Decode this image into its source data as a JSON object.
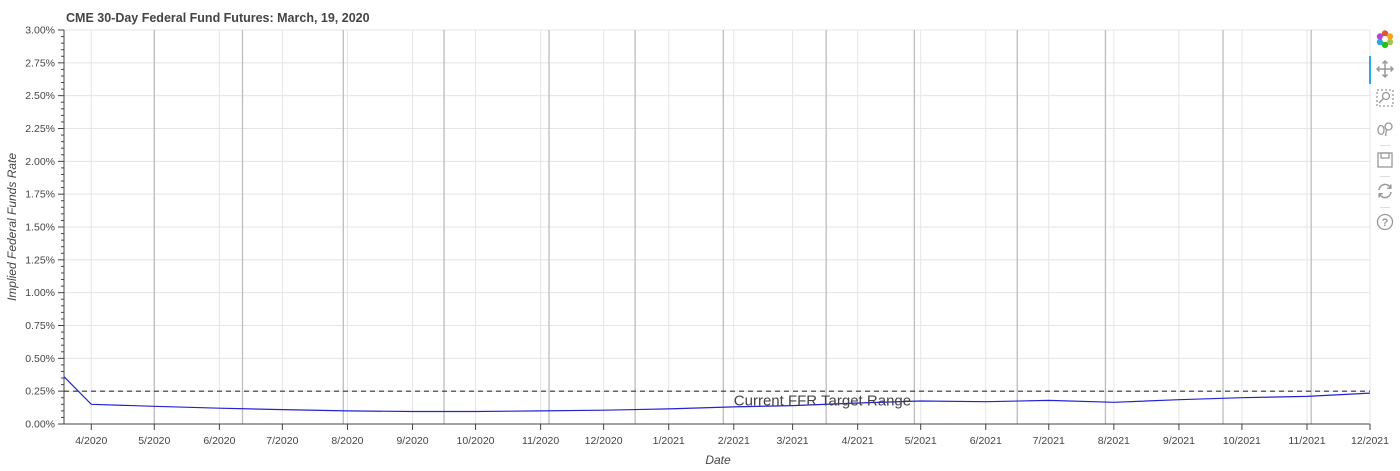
{
  "chart_data": {
    "type": "line",
    "title": "CME 30-Day Federal Fund Futures: March, 19, 2020",
    "xlabel": "Date",
    "ylabel": "Implied Federal Funds Rate",
    "x_ticks": [
      "4/2020",
      "5/2020",
      "6/2020",
      "7/2020",
      "8/2020",
      "9/2020",
      "10/2020",
      "11/2020",
      "12/2020",
      "1/2021",
      "2/2021",
      "3/2021",
      "4/2021",
      "5/2021",
      "6/2021",
      "7/2021",
      "8/2021",
      "9/2021",
      "10/2021",
      "11/2021",
      "12/2021"
    ],
    "x_range": [
      "2020-03-19",
      "2021-12-01"
    ],
    "y_ticks": [
      "0.00%",
      "0.25%",
      "0.50%",
      "0.75%",
      "1.00%",
      "1.25%",
      "1.50%",
      "1.75%",
      "2.00%",
      "2.25%",
      "2.50%",
      "2.75%",
      "3.00%"
    ],
    "y_range": [
      0,
      3.0
    ],
    "grid": true,
    "series": [
      {
        "color": "#2323d4",
        "points": [
          [
            "2020-03-19",
            0.36
          ],
          [
            "2020-04-01",
            0.15
          ],
          [
            "2020-05-01",
            0.135
          ],
          [
            "2020-06-01",
            0.12
          ],
          [
            "2020-07-01",
            0.11
          ],
          [
            "2020-08-01",
            0.1
          ],
          [
            "2020-09-01",
            0.095
          ],
          [
            "2020-10-01",
            0.095
          ],
          [
            "2020-11-01",
            0.1
          ],
          [
            "2020-12-01",
            0.105
          ],
          [
            "2021-01-01",
            0.115
          ],
          [
            "2021-02-01",
            0.13
          ],
          [
            "2021-03-01",
            0.14
          ],
          [
            "2021-04-01",
            0.16
          ],
          [
            "2021-05-01",
            0.175
          ],
          [
            "2021-06-01",
            0.17
          ],
          [
            "2021-07-01",
            0.18
          ],
          [
            "2021-08-01",
            0.165
          ],
          [
            "2021-09-01",
            0.185
          ],
          [
            "2021-10-01",
            0.2
          ],
          [
            "2021-11-01",
            0.21
          ],
          [
            "2021-12-01",
            0.235
          ]
        ]
      }
    ],
    "reference_line": {
      "y": 0.25,
      "style": "dashed",
      "color": "#333333"
    },
    "annotation": {
      "text": "Current FFR Target Range",
      "x": "2021-02-01",
      "y": 0.14
    },
    "vertical_lines": [
      "2020-05-01",
      "2020-06-12",
      "2020-07-30",
      "2020-09-16",
      "2020-11-05",
      "2020-12-16",
      "2021-01-27",
      "2021-03-17",
      "2021-04-28",
      "2021-06-16",
      "2021-07-28",
      "2021-09-22",
      "2021-11-03"
    ]
  },
  "toolbar": {
    "tools": [
      "bokeh-logo",
      "pan",
      "box-zoom",
      "wheel-zoom",
      "save",
      "reset",
      "help"
    ],
    "active": "pan"
  }
}
